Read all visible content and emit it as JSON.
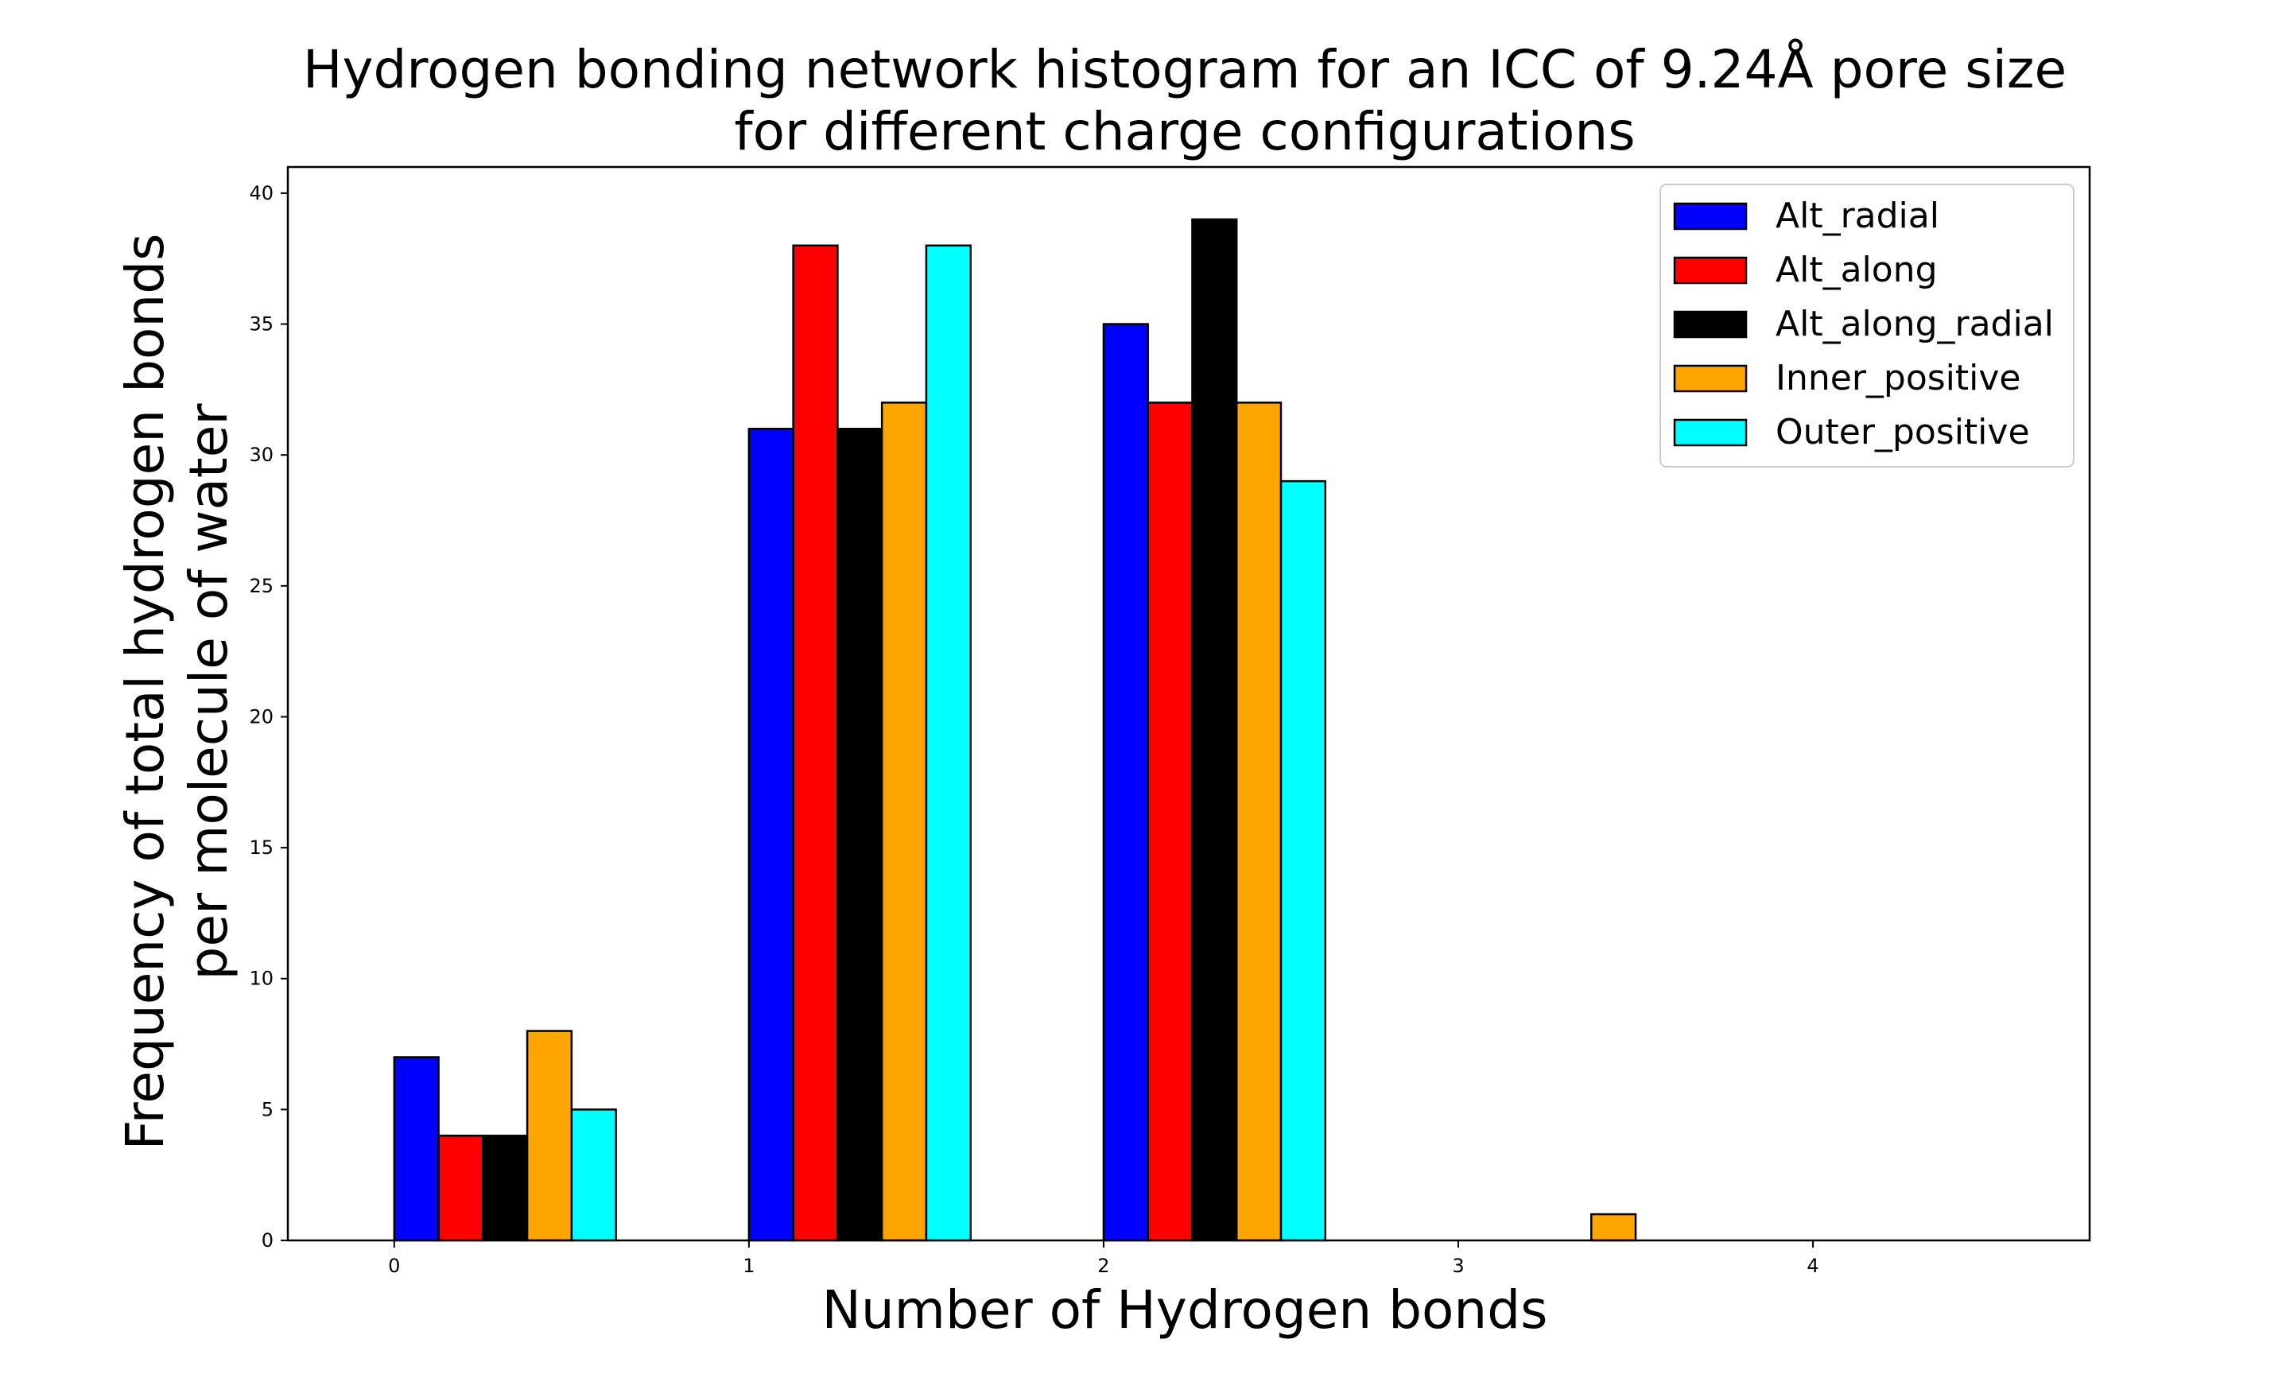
{
  "chart_data": {
    "type": "bar",
    "title_line1": "Hydrogen bonding network histogram for an ICC of 9.24Å pore size",
    "title_line2": "for different charge configurations",
    "xlabel": "Number of Hydrogen bonds",
    "ylabel_line1": "Frequency of total hydrogen bonds",
    "ylabel_line2": "per molecule of water",
    "categories": [
      "0",
      "1",
      "2",
      "3",
      "4"
    ],
    "x": [
      0,
      1,
      2,
      3,
      4
    ],
    "ylim": [
      0,
      41
    ],
    "yticks": [
      "0",
      "5",
      "10",
      "15",
      "20",
      "25",
      "30",
      "35",
      "40"
    ],
    "grid": false,
    "legend_position": "top-right",
    "series": [
      {
        "name": "Alt_radial",
        "color": "#0000ff",
        "values": [
          7,
          31,
          35,
          0,
          0
        ]
      },
      {
        "name": "Alt_along",
        "color": "#ff0000",
        "values": [
          4,
          38,
          32,
          0,
          0
        ]
      },
      {
        "name": "Alt_along_radial",
        "color": "#000000",
        "values": [
          4,
          31,
          39,
          0,
          0
        ]
      },
      {
        "name": "Inner_positive",
        "color": "#ffa500",
        "values": [
          8,
          32,
          32,
          1,
          0
        ]
      },
      {
        "name": "Outer_positive",
        "color": "#00ffff",
        "values": [
          5,
          38,
          29,
          0,
          0
        ]
      }
    ]
  }
}
